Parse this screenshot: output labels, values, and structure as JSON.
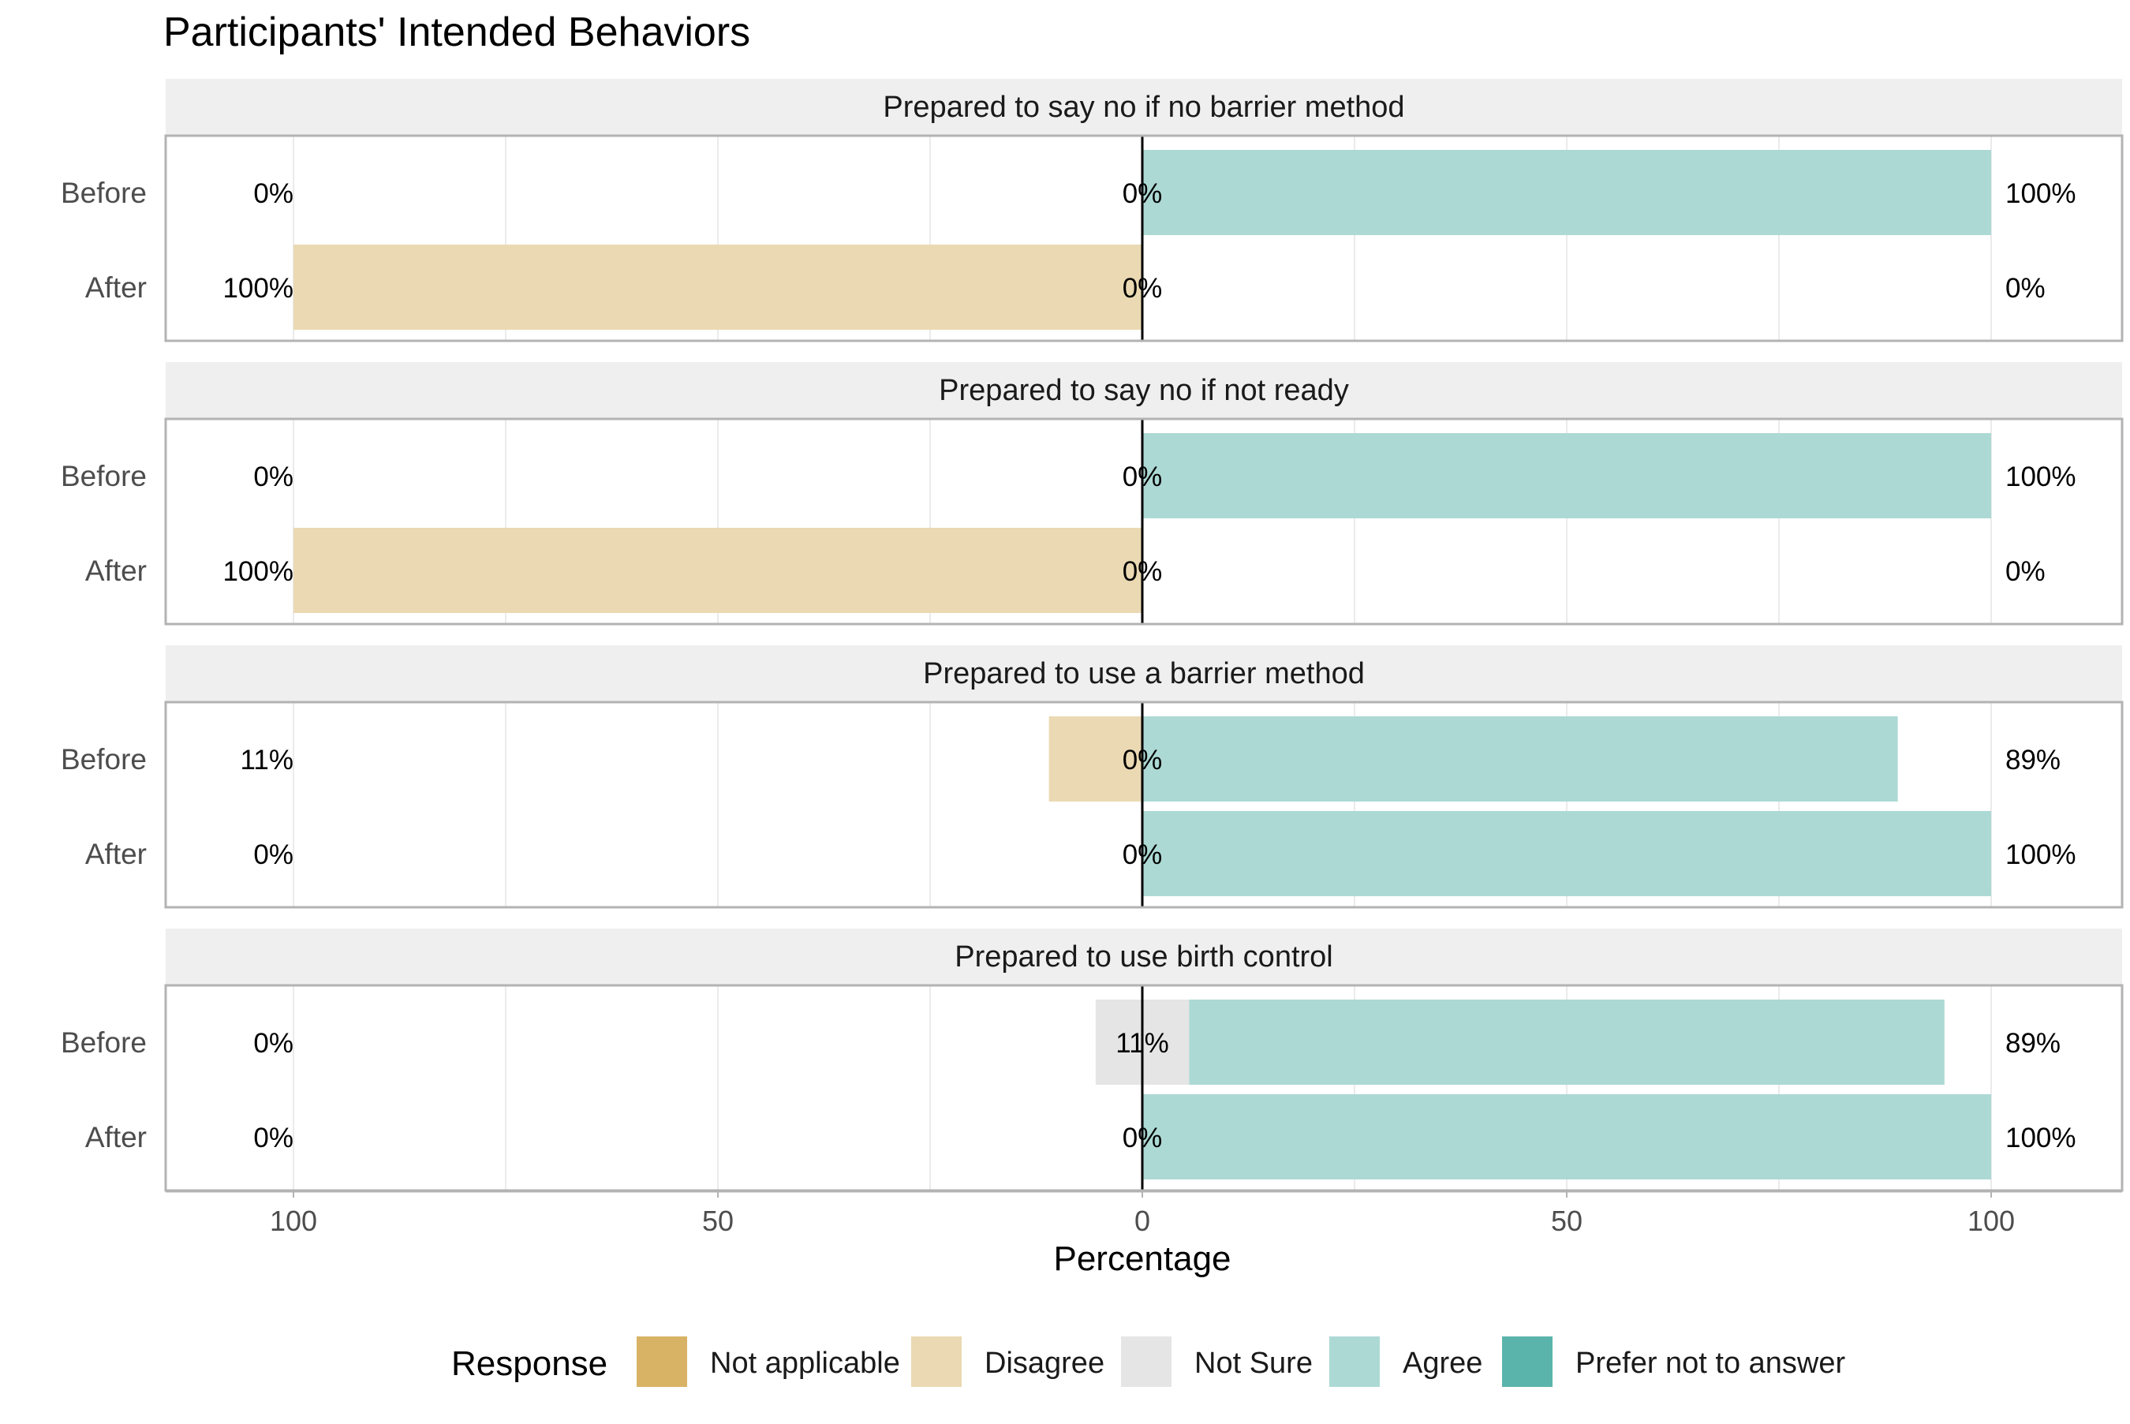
{
  "chart_data": {
    "type": "bar",
    "orientation": "horizontal",
    "stacked": "diverging",
    "title": "Participants' Intended Behaviors",
    "xlabel": "Percentage",
    "ylabel": "",
    "xlim": [
      -115,
      115
    ],
    "xticks": [
      {
        "value": -100,
        "label": "100"
      },
      {
        "value": -50,
        "label": "50"
      },
      {
        "value": 0,
        "label": "0"
      },
      {
        "value": 50,
        "label": "50"
      },
      {
        "value": 100,
        "label": "100"
      }
    ],
    "legend": {
      "title": "Response",
      "position": "bottom",
      "items": [
        {
          "name": "Not applicable",
          "color": "#D8B365"
        },
        {
          "name": "Disagree",
          "color": "#EAD9B2"
        },
        {
          "name": "Not Sure",
          "color": "#E5E5E5"
        },
        {
          "name": "Agree",
          "color": "#ADD9D5"
        },
        {
          "name": "Prefer not to answer",
          "color": "#5AB4AC"
        }
      ]
    },
    "panels": [
      {
        "title": "Prepared to say no if no barrier method",
        "rows": [
          {
            "label": "Before",
            "not_applicable": 0,
            "disagree": 0,
            "not_sure": 0,
            "agree": 100,
            "prefer_not_to_answer": 0,
            "low_label": "0%",
            "neutral_label": "0%",
            "high_label": "100%"
          },
          {
            "label": "After",
            "not_applicable": 0,
            "disagree": 100,
            "not_sure": 0,
            "agree": 0,
            "prefer_not_to_answer": 0,
            "low_label": "100%",
            "neutral_label": "0%",
            "high_label": "0%"
          }
        ]
      },
      {
        "title": "Prepared to say no if not ready",
        "rows": [
          {
            "label": "Before",
            "not_applicable": 0,
            "disagree": 0,
            "not_sure": 0,
            "agree": 100,
            "prefer_not_to_answer": 0,
            "low_label": "0%",
            "neutral_label": "0%",
            "high_label": "100%"
          },
          {
            "label": "After",
            "not_applicable": 0,
            "disagree": 100,
            "not_sure": 0,
            "agree": 0,
            "prefer_not_to_answer": 0,
            "low_label": "100%",
            "neutral_label": "0%",
            "high_label": "0%"
          }
        ]
      },
      {
        "title": "Prepared to use a barrier method",
        "rows": [
          {
            "label": "Before",
            "not_applicable": 0,
            "disagree": 11,
            "not_sure": 0,
            "agree": 89,
            "prefer_not_to_answer": 0,
            "low_label": "11%",
            "neutral_label": "0%",
            "high_label": "89%"
          },
          {
            "label": "After",
            "not_applicable": 0,
            "disagree": 0,
            "not_sure": 0,
            "agree": 100,
            "prefer_not_to_answer": 0,
            "low_label": "0%",
            "neutral_label": "0%",
            "high_label": "100%"
          }
        ]
      },
      {
        "title": "Prepared to use birth control",
        "rows": [
          {
            "label": "Before",
            "not_applicable": 0,
            "disagree": 0,
            "not_sure": 11,
            "agree": 89,
            "prefer_not_to_answer": 0,
            "low_label": "0%",
            "neutral_label": "11%",
            "high_label": "89%"
          },
          {
            "label": "After",
            "not_applicable": 0,
            "disagree": 0,
            "not_sure": 0,
            "agree": 100,
            "prefer_not_to_answer": 0,
            "low_label": "0%",
            "neutral_label": "0%",
            "high_label": "100%"
          }
        ]
      }
    ]
  }
}
